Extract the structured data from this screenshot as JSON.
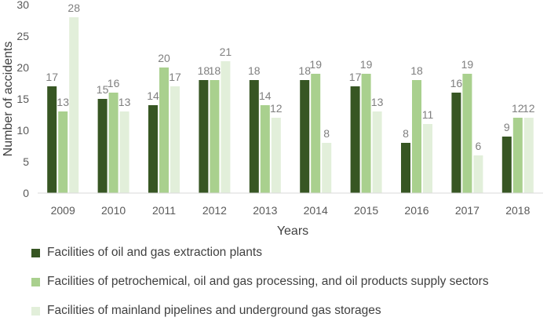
{
  "chart_data": {
    "type": "bar",
    "title": "",
    "xlabel": "Years",
    "ylabel": "Number of accidents",
    "ylim": [
      0,
      30
    ],
    "yticks": [
      "0",
      "5",
      "10",
      "15",
      "20",
      "25",
      "30"
    ],
    "categories": [
      "2009",
      "2010",
      "2011",
      "2012",
      "2013",
      "2014",
      "2015",
      "2016",
      "2017",
      "2018"
    ],
    "series": [
      {
        "name": "Facilities of oil and gas extraction plants",
        "color": "#375623",
        "values": [
          17,
          15,
          14,
          18,
          18,
          18,
          17,
          8,
          16,
          9
        ]
      },
      {
        "name": "Facilities of petrochemical, oil and gas processing, and oil products supply sectors",
        "color": "#a9d08e",
        "values": [
          13,
          16,
          20,
          18,
          14,
          19,
          19,
          18,
          19,
          12
        ]
      },
      {
        "name": "Facilities of mainland pipelines and underground gas storages",
        "color": "#e2efda",
        "values": [
          28,
          13,
          17,
          21,
          12,
          8,
          13,
          11,
          6,
          12
        ]
      }
    ],
    "legend_position": "bottom",
    "grid": false
  }
}
